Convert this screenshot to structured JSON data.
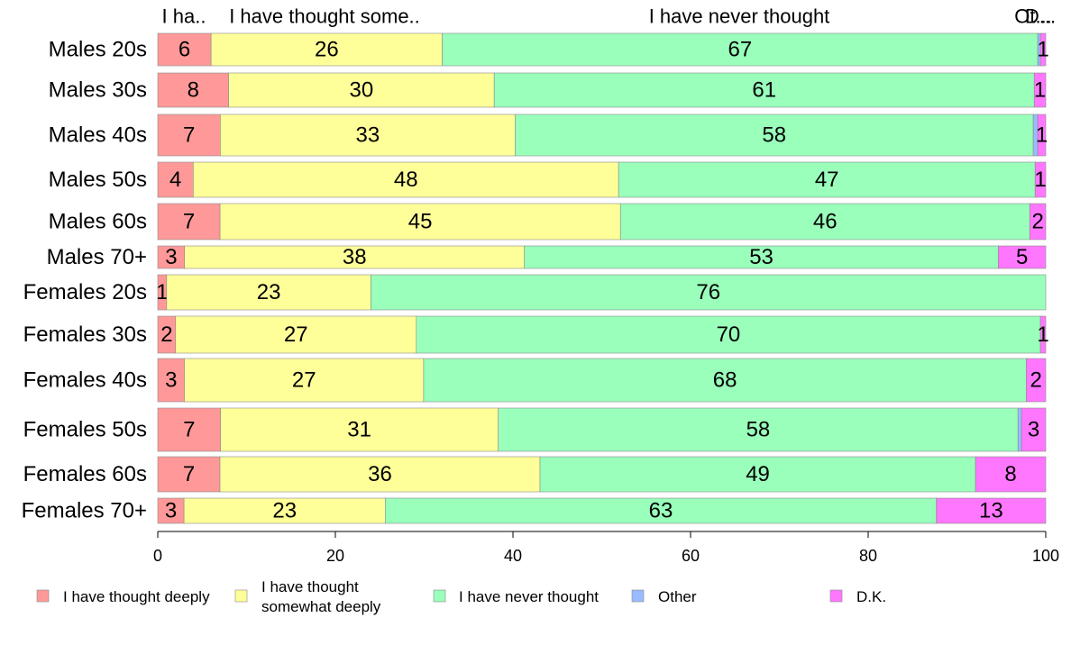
{
  "chart_data": {
    "type": "bar",
    "orientation": "horizontal",
    "stacked": true,
    "categories": [
      "Males 20s",
      "Males 30s",
      "Males 40s",
      "Males 50s",
      "Males 60s",
      "Males 70+",
      "Females 20s",
      "Females 30s",
      "Females 40s",
      "Females 50s",
      "Females 60s",
      "Females 70+"
    ],
    "series": [
      {
        "name": "I have thought deeply",
        "color": "#ff9999",
        "values": [
          6,
          8,
          7,
          4,
          7,
          3,
          1,
          2,
          3,
          7,
          7,
          3
        ],
        "labels": [
          "6",
          "8",
          "7",
          "4",
          "7",
          "3",
          "1",
          "2",
          "3",
          "7",
          "7",
          "3"
        ]
      },
      {
        "name": "I have thought somewhat deeply",
        "color": "#ffff99",
        "values": [
          26,
          30,
          33,
          48,
          45,
          38,
          23,
          27,
          27,
          31,
          36,
          23
        ],
        "labels": [
          "26",
          "30",
          "33",
          "48",
          "45",
          "38",
          "23",
          "27",
          "27",
          "31",
          "36",
          "23"
        ]
      },
      {
        "name": "I have never thought",
        "color": "#99ffbb",
        "values": [
          67,
          61,
          58,
          47,
          46,
          53,
          76,
          70,
          68,
          58,
          49,
          63
        ],
        "labels": [
          "67",
          "61",
          "58",
          "47",
          "46",
          "53",
          "76",
          "70",
          "68",
          "58",
          "49",
          "63"
        ]
      },
      {
        "name": "Other",
        "color": "#99bbff",
        "values": [
          0.3,
          0,
          0.5,
          0,
          0,
          0,
          0,
          0,
          0,
          0.4,
          0,
          0
        ],
        "labels": [
          "",
          "",
          "",
          "",
          "",
          "",
          "",
          "",
          "",
          "",
          "",
          ""
        ]
      },
      {
        "name": "D.K.",
        "color": "#ff77ff",
        "values": [
          0.6,
          1.3,
          0.9,
          1.2,
          1.8,
          5.3,
          0,
          0.6,
          2.2,
          2.7,
          7.9,
          12.5
        ],
        "labels": [
          "1",
          "1",
          "1",
          "1",
          "2",
          "5",
          "",
          "1",
          "2",
          "3",
          "8",
          "13"
        ]
      }
    ],
    "legend": [
      "I have thought deeply",
      "I have thought somewhat deeply",
      "I have never thought",
      "Other",
      "D.K."
    ],
    "legend_placement": "bottom",
    "top_labels": [
      "I ha..",
      "I have thought some..",
      "I have never thought",
      "Ot...",
      "D..."
    ],
    "xlim": [
      0,
      100
    ],
    "xticks": [
      0,
      20,
      40,
      60,
      80,
      100
    ],
    "grid": false
  }
}
